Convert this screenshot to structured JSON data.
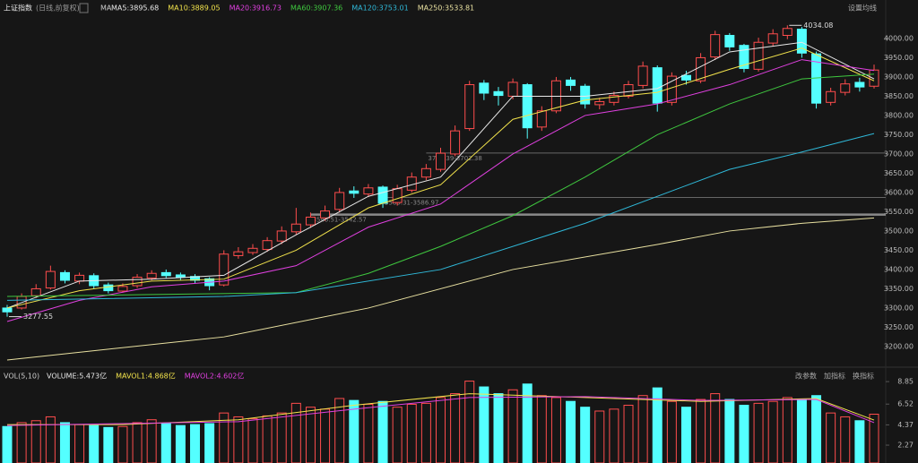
{
  "chart_data": [
    {
      "type": "candlestick",
      "title": "上证指数",
      "subtitle": "(日线,前复权)",
      "ma_label": "MA",
      "settings_button": "设置均线",
      "up_color": "#ff4d4d",
      "down_color": "#54ffff",
      "open": [
        3300,
        3300,
        3332,
        3352,
        3392,
        3370,
        3384,
        3360,
        3344,
        3358,
        3378,
        3392,
        3386,
        3382,
        3376,
        3360,
        3436,
        3444,
        3452,
        3474,
        3498,
        3516,
        3534,
        3556,
        3604,
        3596,
        3614,
        3574,
        3606,
        3640,
        3660,
        3700,
        3766,
        3884,
        3862,
        3850,
        3880,
        3770,
        3812,
        3892,
        3876,
        3828,
        3834,
        3850,
        3878,
        3924,
        3834,
        3904,
        3890,
        3952,
        4008,
        3982,
        3920,
        3988,
        4008,
        4024,
        3960,
        3834,
        3860,
        3886,
        3876
      ],
      "high": [
        3308,
        3338,
        3362,
        3410,
        3398,
        3392,
        3390,
        3366,
        3364,
        3388,
        3398,
        3400,
        3392,
        3388,
        3380,
        3450,
        3458,
        3466,
        3484,
        3512,
        3560,
        3548,
        3566,
        3612,
        3616,
        3622,
        3618,
        3620,
        3652,
        3674,
        3716,
        3774,
        3890,
        3892,
        3874,
        3896,
        3884,
        3824,
        3900,
        3900,
        3882,
        3846,
        3862,
        3890,
        3940,
        3930,
        3912,
        3916,
        3962,
        4020,
        4014,
        3986,
        4002,
        4024,
        4034.08,
        4030,
        3966,
        3872,
        3894,
        3898,
        3932
      ],
      "low": [
        3277.55,
        3296,
        3326,
        3348,
        3364,
        3362,
        3350,
        3338,
        3340,
        3352,
        3372,
        3378,
        3372,
        3364,
        3346,
        3356,
        3428,
        3438,
        3446,
        3466,
        3490,
        3508,
        3526,
        3548,
        3586,
        3588,
        3560,
        3566,
        3600,
        3632,
        3654,
        3694,
        3760,
        3840,
        3826,
        3842,
        3740,
        3760,
        3806,
        3864,
        3818,
        3816,
        3826,
        3844,
        3870,
        3810,
        3826,
        3880,
        3884,
        3944,
        3968,
        3912,
        3914,
        3980,
        3998,
        3950,
        3818,
        3826,
        3852,
        3862,
        3870
      ],
      "close": [
        3290,
        3330,
        3350,
        3395,
        3372,
        3385,
        3358,
        3345,
        3356,
        3380,
        3390,
        3384,
        3380,
        3372,
        3358,
        3440,
        3446,
        3455,
        3475,
        3500,
        3518,
        3536,
        3552,
        3600,
        3598,
        3612,
        3572,
        3610,
        3640,
        3662,
        3702,
        3760,
        3880,
        3858,
        3852,
        3886,
        3768,
        3812,
        3890,
        3878,
        3830,
        3836,
        3852,
        3880,
        3928,
        3832,
        3902,
        3892,
        3950,
        4010,
        3978,
        3922,
        3990,
        4012,
        4026,
        3962,
        3832,
        3862,
        3882,
        3874,
        3918
      ],
      "lines": [
        {
          "name": "MA5:3895.68",
          "color": "#e8e8e8",
          "x": [
            0,
            5,
            10,
            15,
            20,
            25,
            30,
            35,
            40,
            45,
            50,
            55,
            60
          ],
          "values": [
            3300,
            3370,
            3375,
            3385,
            3490,
            3590,
            3640,
            3850,
            3850,
            3870,
            3965,
            3990,
            3895
          ]
        },
        {
          "name": "MA10:3889.05",
          "color": "#f2e34c",
          "x": [
            0,
            5,
            10,
            15,
            20,
            25,
            30,
            35,
            40,
            45,
            50,
            55,
            60
          ],
          "values": [
            3300,
            3345,
            3370,
            3375,
            3450,
            3560,
            3620,
            3790,
            3840,
            3860,
            3920,
            3975,
            3890
          ]
        },
        {
          "name": "MA20:3916.73",
          "color": "#e040e0",
          "x": [
            0,
            5,
            10,
            15,
            20,
            25,
            30,
            35,
            40,
            45,
            50,
            55,
            60
          ],
          "values": [
            3265,
            3320,
            3355,
            3370,
            3410,
            3510,
            3570,
            3700,
            3800,
            3830,
            3880,
            3945,
            3916.73
          ]
        },
        {
          "name": "MA60:3907.36",
          "color": "#3fc83f",
          "x": [
            0,
            10,
            20,
            25,
            30,
            35,
            40,
            45,
            50,
            55,
            60
          ],
          "values": [
            3330,
            3335,
            3340,
            3390,
            3460,
            3540,
            3640,
            3750,
            3830,
            3895,
            3907.36
          ]
        },
        {
          "name": "MA120:3753.01",
          "color": "#2fb8d8",
          "x": [
            0,
            15,
            20,
            30,
            40,
            50,
            55,
            60
          ],
          "values": [
            3320,
            3330,
            3340,
            3400,
            3520,
            3660,
            3705,
            3753.01
          ]
        },
        {
          "name": "MA250:3533.81",
          "color": "#e8e0a0",
          "x": [
            0,
            15,
            25,
            35,
            45,
            50,
            55,
            60
          ],
          "values": [
            3165,
            3225,
            3300,
            3400,
            3465,
            3500,
            3520,
            3533.81
          ]
        }
      ],
      "annotations": [
        {
          "label": "3277.55",
          "value": 3277.55,
          "x": 0
        },
        {
          "label": "4034.08",
          "value": 4034.08,
          "x": 54
        }
      ],
      "levels": [
        {
          "value": 3702.38,
          "label": "3702.39-3702.38",
          "x": 29
        },
        {
          "value": 3586.97,
          "label": "3583.31-3586.97",
          "x": 26
        },
        {
          "value": 3542.57,
          "label": "3546.51-3542.57",
          "x": 21
        }
      ],
      "ylim": [
        3158,
        4058
      ],
      "yticks": [
        {
          "value": 3200,
          "label": "3200.00"
        },
        {
          "value": 3250,
          "label": "3250.00"
        },
        {
          "value": 3300,
          "label": "3300.00"
        },
        {
          "value": 3350,
          "label": "3350.00"
        },
        {
          "value": 3400,
          "label": "3400.00"
        },
        {
          "value": 3450,
          "label": "3450.00"
        },
        {
          "value": 3500,
          "label": "3500.00"
        },
        {
          "value": 3550,
          "label": "3550.00"
        },
        {
          "value": 3600,
          "label": "3600.00"
        },
        {
          "value": 3650,
          "label": "3650.00"
        },
        {
          "value": 3700,
          "label": "3700.00"
        },
        {
          "value": 3750,
          "label": "3750.00"
        },
        {
          "value": 3800,
          "label": "3800.00"
        },
        {
          "value": 3850,
          "label": "3850.00"
        },
        {
          "value": 3900,
          "label": "3900.00"
        },
        {
          "value": 3950,
          "label": "3950.00"
        },
        {
          "value": 4000,
          "label": "4000.00"
        }
      ]
    },
    {
      "type": "bar",
      "title": "VOL(5,10)",
      "buttons": [
        "改参数",
        "加指标",
        "换指标"
      ],
      "series": [
        {
          "name": "VOLUME:5.473亿",
          "color": "#e8e8e8",
          "values": [
            4.2,
            4.6,
            4.8,
            5.2,
            4.6,
            4.4,
            4.3,
            4.1,
            4.2,
            4.6,
            4.9,
            4.5,
            4.3,
            4.4,
            4.5,
            5.6,
            5.2,
            5.0,
            5.3,
            5.6,
            6.6,
            6.2,
            6.0,
            7.1,
            6.9,
            6.5,
            6.8,
            6.2,
            6.5,
            6.6,
            7.2,
            7.6,
            8.9,
            8.3,
            7.6,
            8.0,
            8.6,
            7.4,
            7.2,
            6.8,
            6.2,
            5.8,
            6.0,
            6.4,
            7.4,
            8.2,
            6.8,
            6.2,
            7.0,
            7.6,
            7.0,
            6.4,
            6.6,
            6.8,
            7.2,
            7.0,
            7.4,
            5.6,
            5.2,
            4.8,
            5.473
          ]
        }
      ],
      "lines": [
        {
          "name": "MAVOL1:4.868亿",
          "color": "#f2e34c",
          "x": [
            0,
            8,
            16,
            24,
            32,
            40,
            48,
            56,
            60
          ],
          "values": [
            4.4,
            4.4,
            4.9,
            6.4,
            7.6,
            7.2,
            6.8,
            7.1,
            4.868
          ]
        },
        {
          "name": "MAVOL2:4.602亿",
          "color": "#e040e0",
          "x": [
            0,
            8,
            16,
            24,
            32,
            40,
            48,
            56,
            60
          ],
          "values": [
            4.3,
            4.5,
            4.7,
            6.0,
            7.2,
            7.3,
            6.9,
            7.0,
            4.602
          ]
        }
      ],
      "ylim": [
        0.42,
        9.88
      ],
      "yticks": [
        2.27,
        4.37,
        6.52,
        8.85
      ]
    }
  ]
}
